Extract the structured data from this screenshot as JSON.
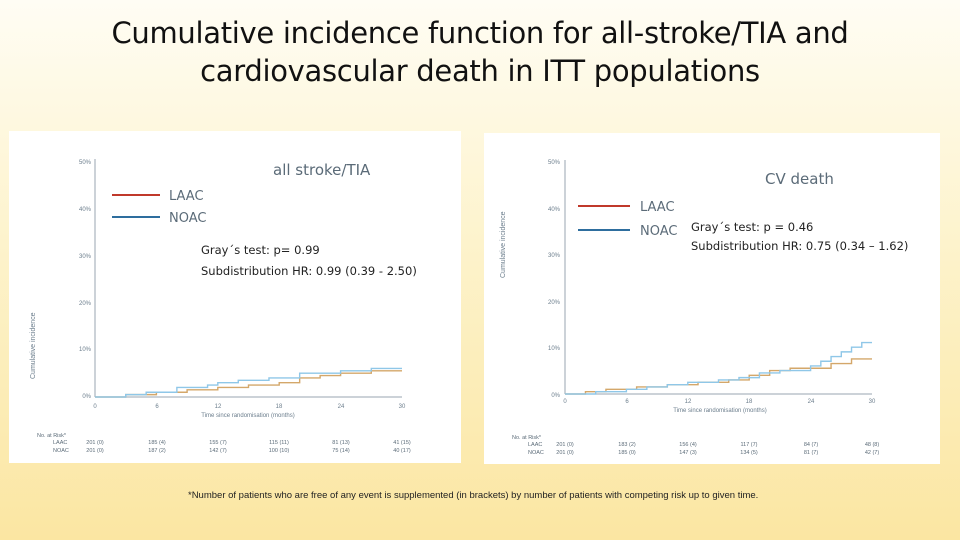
{
  "title": {
    "line1": "Cumulative incidence function for all-stroke/TIA and",
    "line2": "cardiovascular death in ITT populations"
  },
  "chart_data": [
    {
      "type": "line",
      "title": "all stroke/TIA",
      "xlabel": "Time since randomisation (months)",
      "ylabel": "Cumulative incidence",
      "x_ticks": [
        0,
        6,
        12,
        18,
        24,
        30
      ],
      "x_tick_labels": [
        "0",
        "6",
        "12",
        "18",
        "24",
        "30"
      ],
      "y_ticks": [
        0,
        10,
        20,
        30,
        40,
        50
      ],
      "y_tick_labels": [
        "0%",
        "10%",
        "20%",
        "30%",
        "40%",
        "50%"
      ],
      "xlim": [
        0,
        30
      ],
      "ylim": [
        0,
        50
      ],
      "legend": [
        {
          "name": "LAAC",
          "color": "#c0392b"
        },
        {
          "name": "NOAC",
          "color": "#2e6e9e"
        }
      ],
      "annotation": {
        "line1": "Gray´s test: p= 0.99",
        "line2": "Subdistribution HR: 0.99 (0.39 - 2.50)"
      },
      "series": [
        {
          "name": "LAAC",
          "color": "#d4a76a",
          "points": [
            [
              0,
              0
            ],
            [
              3,
              0.5
            ],
            [
              6,
              1
            ],
            [
              9,
              1.5
            ],
            [
              12,
              2
            ],
            [
              15,
              2.5
            ],
            [
              18,
              3
            ],
            [
              20,
              4
            ],
            [
              22,
              4.5
            ],
            [
              24,
              5
            ],
            [
              27,
              5.5
            ],
            [
              30,
              5.5
            ]
          ]
        },
        {
          "name": "NOAC",
          "color": "#8fc7e8",
          "points": [
            [
              0,
              0
            ],
            [
              3,
              0.5
            ],
            [
              5,
              1
            ],
            [
              8,
              2
            ],
            [
              11,
              2.5
            ],
            [
              12,
              3
            ],
            [
              14,
              3.5
            ],
            [
              17,
              4
            ],
            [
              20,
              5
            ],
            [
              24,
              5.5
            ],
            [
              27,
              6
            ],
            [
              30,
              6
            ]
          ]
        }
      ],
      "risk_table": {
        "header": "No. at Risk*",
        "rows": [
          {
            "label": "LAAC",
            "values": [
              "201 (0)",
              "185 (4)",
              "155 (7)",
              "115 (11)",
              "81 (13)",
              "41 (15)"
            ]
          },
          {
            "label": "NOAC",
            "values": [
              "201 (0)",
              "187 (2)",
              "142 (7)",
              "100 (10)",
              "75 (14)",
              "40 (17)"
            ]
          }
        ]
      }
    },
    {
      "type": "line",
      "title": "CV death",
      "xlabel": "Time since randomisation (months)",
      "ylabel": "Cumulative incidence",
      "x_ticks": [
        0,
        6,
        12,
        18,
        24,
        30
      ],
      "x_tick_labels": [
        "0",
        "6",
        "12",
        "18",
        "24",
        "30"
      ],
      "y_ticks": [
        0,
        10,
        20,
        30,
        40,
        50
      ],
      "y_tick_labels": [
        "0%",
        "10%",
        "20%",
        "30%",
        "40%",
        "50%"
      ],
      "xlim": [
        0,
        30
      ],
      "ylim": [
        0,
        50
      ],
      "legend": [
        {
          "name": "LAAC",
          "color": "#c0392b"
        },
        {
          "name": "NOAC",
          "color": "#2e6e9e"
        }
      ],
      "annotation": {
        "line1": "Gray´s test: p = 0.46",
        "line2": "Subdistribution HR: 0.75 (0.34 – 1.62)"
      },
      "series": [
        {
          "name": "LAAC",
          "color": "#d4a76a",
          "points": [
            [
              0,
              0
            ],
            [
              2,
              0.5
            ],
            [
              4,
              1
            ],
            [
              7,
              1.5
            ],
            [
              10,
              2
            ],
            [
              13,
              2.5
            ],
            [
              16,
              3
            ],
            [
              18,
              4
            ],
            [
              20,
              5
            ],
            [
              22,
              5.5
            ],
            [
              26,
              6.5
            ],
            [
              28,
              7.5
            ],
            [
              30,
              7.5
            ]
          ]
        },
        {
          "name": "NOAC",
          "color": "#8fc7e8",
          "points": [
            [
              0,
              0
            ],
            [
              3,
              0.5
            ],
            [
              6,
              1
            ],
            [
              8,
              1.5
            ],
            [
              10,
              2
            ],
            [
              12,
              2.5
            ],
            [
              15,
              3
            ],
            [
              17,
              3.5
            ],
            [
              19,
              4.5
            ],
            [
              21,
              5
            ],
            [
              24,
              6
            ],
            [
              25,
              7
            ],
            [
              26,
              8
            ],
            [
              27,
              9
            ],
            [
              28,
              10
            ],
            [
              29,
              11
            ],
            [
              30,
              11
            ]
          ]
        }
      ],
      "risk_table": {
        "header": "No. at Risk*",
        "rows": [
          {
            "label": "LAAC",
            "values": [
              "201 (0)",
              "183 (2)",
              "156 (4)",
              "117 (7)",
              "84 (7)",
              "48 (8)"
            ]
          },
          {
            "label": "NOAC",
            "values": [
              "201 (0)",
              "185 (0)",
              "147 (3)",
              "134 (5)",
              "81 (7)",
              "42 (7)"
            ]
          }
        ]
      }
    }
  ],
  "footnote": "*Number of patients who are free of any event is supplemented (in brackets) by number of patients with competing risk up to given time."
}
